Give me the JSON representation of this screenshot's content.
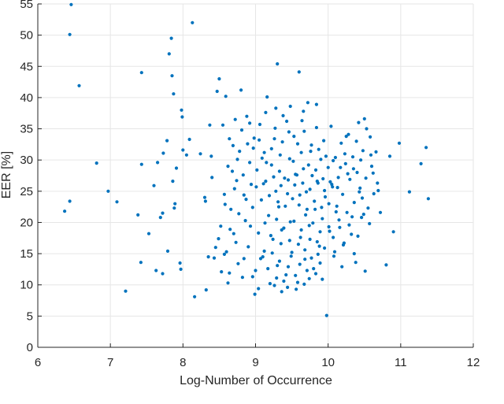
{
  "chart_data": {
    "type": "scatter",
    "title": "",
    "xlabel": "Log-Number of Occurrence",
    "ylabel": "EER [%]",
    "xlim": [
      6,
      12
    ],
    "ylim": [
      0,
      55
    ],
    "xticks": [
      6,
      7,
      8,
      9,
      10,
      11,
      12
    ],
    "yticks": [
      0,
      5,
      10,
      15,
      20,
      25,
      30,
      35,
      40,
      45,
      50,
      55
    ],
    "xtick_labels": [
      "6",
      "7",
      "8",
      "9",
      "10",
      "11",
      "12"
    ],
    "ytick_labels": [
      "0",
      "5",
      "10",
      "15",
      "20",
      "25",
      "30",
      "35",
      "40",
      "45",
      "50",
      "55"
    ],
    "grid": true,
    "marker_color": "#0072BD",
    "grid_color": "#e6e6e6",
    "axis_color": "#262626",
    "series": [
      {
        "points": [
          [
            6.46,
            54.9
          ],
          [
            6.44,
            50.1
          ],
          [
            6.57,
            41.9
          ],
          [
            6.37,
            21.8
          ],
          [
            6.44,
            23.4
          ],
          [
            6.81,
            29.5
          ],
          [
            6.97,
            25.0
          ],
          [
            7.09,
            23.3
          ],
          [
            7.21,
            9.0
          ],
          [
            7.38,
            21.2
          ],
          [
            7.42,
            13.6
          ],
          [
            7.43,
            29.3
          ],
          [
            7.43,
            44.0
          ],
          [
            7.53,
            18.2
          ],
          [
            7.6,
            25.9
          ],
          [
            7.63,
            12.3
          ],
          [
            7.65,
            29.6
          ],
          [
            7.69,
            20.8
          ],
          [
            7.72,
            21.5
          ],
          [
            7.72,
            11.8
          ],
          [
            7.73,
            31.1
          ],
          [
            7.78,
            33.1
          ],
          [
            7.79,
            15.4
          ],
          [
            7.81,
            47.0
          ],
          [
            7.84,
            49.5
          ],
          [
            7.85,
            43.5
          ],
          [
            7.86,
            26.6
          ],
          [
            7.87,
            40.6
          ],
          [
            7.88,
            22.3
          ],
          [
            7.89,
            23.0
          ],
          [
            7.91,
            28.7
          ],
          [
            7.96,
            13.5
          ],
          [
            7.97,
            12.5
          ],
          [
            7.98,
            38.0
          ],
          [
            7.99,
            36.9
          ],
          [
            8.0,
            31.6
          ],
          [
            8.05,
            30.8
          ],
          [
            8.09,
            33.3
          ],
          [
            8.13,
            52.0
          ],
          [
            8.16,
            8.1
          ],
          [
            8.24,
            31.0
          ],
          [
            8.3,
            24.0
          ],
          [
            8.31,
            23.4
          ],
          [
            8.32,
            9.2
          ],
          [
            8.35,
            14.5
          ],
          [
            8.37,
            35.6
          ],
          [
            8.39,
            30.6
          ],
          [
            8.4,
            27.2
          ],
          [
            8.43,
            14.3
          ],
          [
            8.45,
            16.0
          ],
          [
            8.47,
            41.0
          ],
          [
            8.5,
            43.0
          ],
          [
            8.52,
            19.4
          ],
          [
            8.53,
            12.1
          ],
          [
            8.55,
            35.6
          ],
          [
            8.57,
            24.5
          ],
          [
            8.59,
            40.2
          ],
          [
            8.6,
            15.3
          ],
          [
            8.62,
            10.3
          ],
          [
            8.64,
            33.4
          ],
          [
            8.66,
            22.1
          ],
          [
            8.68,
            28.2
          ],
          [
            8.7,
            18.2
          ],
          [
            8.72,
            36.5
          ],
          [
            8.74,
            26.7
          ],
          [
            8.76,
            13.4
          ],
          [
            8.78,
            31.4
          ],
          [
            8.8,
            41.2
          ],
          [
            8.82,
            11.2
          ],
          [
            8.84,
            24.4
          ],
          [
            8.86,
            20.3
          ],
          [
            8.88,
            37.0
          ],
          [
            8.9,
            16.1
          ],
          [
            8.92,
            29.6
          ],
          [
            8.94,
            26.1
          ],
          [
            8.96,
            22.4
          ],
          [
            8.98,
            33.5
          ],
          [
            9.0,
            12.3
          ],
          [
            9.02,
            28.4
          ],
          [
            9.04,
            18.3
          ],
          [
            9.06,
            35.7
          ],
          [
            9.08,
            23.6
          ],
          [
            9.1,
            14.5
          ],
          [
            9.12,
            31.2
          ],
          [
            9.14,
            26.6
          ],
          [
            9.16,
            40.1
          ],
          [
            9.18,
            21.1
          ],
          [
            9.2,
            10.2
          ],
          [
            9.22,
            29.2
          ],
          [
            9.24,
            17.3
          ],
          [
            9.26,
            33.4
          ],
          [
            9.28,
            25.0
          ],
          [
            9.3,
            45.4
          ],
          [
            9.3,
            13.1
          ],
          [
            9.32,
            22.5
          ],
          [
            9.34,
            30.8
          ],
          [
            9.36,
            18.8
          ],
          [
            9.38,
            37.1
          ],
          [
            9.4,
            27.1
          ],
          [
            9.42,
            11.6
          ],
          [
            9.44,
            24.6
          ],
          [
            9.46,
            34.5
          ],
          [
            9.48,
            20.1
          ],
          [
            9.5,
            15.2
          ],
          [
            9.52,
            29.8
          ],
          [
            9.54,
            26.0
          ],
          [
            9.56,
            9.3
          ],
          [
            9.58,
            32.6
          ],
          [
            9.6,
            44.1
          ],
          [
            9.6,
            22.8
          ],
          [
            9.62,
            17.6
          ],
          [
            9.64,
            36.3
          ],
          [
            9.66,
            28.6
          ],
          [
            9.68,
            14.1
          ],
          [
            9.7,
            24.9
          ],
          [
            9.72,
            39.2
          ],
          [
            9.74,
            19.5
          ],
          [
            9.76,
            31.4
          ],
          [
            9.78,
            27.5
          ],
          [
            9.8,
            12.6
          ],
          [
            9.82,
            22.1
          ],
          [
            9.84,
            35.2
          ],
          [
            9.86,
            26.3
          ],
          [
            9.88,
            16.2
          ],
          [
            9.9,
            30.1
          ],
          [
            9.92,
            20.6
          ],
          [
            9.94,
            33.1
          ],
          [
            9.96,
            24.1
          ],
          [
            9.98,
            5.1
          ],
          [
            10.0,
            28.8
          ],
          [
            10.02,
            18.6
          ],
          [
            10.04,
            35.4
          ],
          [
            10.06,
            25.7
          ],
          [
            10.08,
            14.6
          ],
          [
            10.1,
            30.4
          ],
          [
            10.12,
            22.6
          ],
          [
            10.14,
            27.2
          ],
          [
            10.16,
            19.2
          ],
          [
            10.18,
            32.7
          ],
          [
            10.2,
            24.5
          ],
          [
            10.22,
            16.7
          ],
          [
            10.24,
            29.4
          ],
          [
            10.26,
            21.6
          ],
          [
            10.28,
            34.1
          ],
          [
            10.3,
            26.9
          ],
          [
            10.32,
            18.1
          ],
          [
            10.34,
            30.5
          ],
          [
            10.36,
            23.2
          ],
          [
            10.38,
            13.6
          ],
          [
            10.4,
            28.0
          ],
          [
            10.42,
            36.0
          ],
          [
            10.44,
            25.5
          ],
          [
            10.46,
            20.8
          ],
          [
            10.48,
            31.5
          ],
          [
            10.5,
            36.6
          ],
          [
            10.52,
            27.1
          ],
          [
            10.55,
            22.3
          ],
          [
            10.58,
            33.7
          ],
          [
            10.6,
            29.0
          ],
          [
            10.63,
            24.6
          ],
          [
            10.66,
            31.3
          ],
          [
            10.68,
            26.3
          ],
          [
            10.72,
            21.6
          ],
          [
            10.8,
            13.2
          ],
          [
            10.85,
            30.6
          ],
          [
            10.9,
            18.5
          ],
          [
            10.98,
            32.7
          ],
          [
            11.12,
            24.9
          ],
          [
            11.28,
            29.4
          ],
          [
            11.35,
            32.0
          ],
          [
            11.38,
            23.8
          ],
          [
            8.92,
            35.9
          ],
          [
            9.05,
            33.2
          ],
          [
            9.15,
            29.6
          ],
          [
            9.22,
            31.8
          ],
          [
            9.27,
            35.1
          ],
          [
            9.33,
            28.2
          ],
          [
            9.37,
            32.9
          ],
          [
            9.43,
            36.2
          ],
          [
            9.47,
            30.2
          ],
          [
            9.53,
            33.8
          ],
          [
            9.57,
            27.6
          ],
          [
            9.63,
            31.2
          ],
          [
            9.67,
            34.6
          ],
          [
            9.73,
            29.2
          ],
          [
            9.77,
            32.4
          ],
          [
            9.83,
            28.4
          ],
          [
            9.87,
            31.7
          ],
          [
            9.93,
            27.0
          ],
          [
            9.97,
            30.6
          ],
          [
            10.03,
            26.5
          ],
          [
            10.07,
            29.9
          ],
          [
            10.13,
            25.6
          ],
          [
            10.17,
            28.8
          ],
          [
            10.23,
            31.0
          ],
          [
            10.27,
            27.8
          ],
          [
            9.11,
            26.2
          ],
          [
            9.19,
            24.3
          ],
          [
            9.25,
            27.3
          ],
          [
            9.31,
            23.3
          ],
          [
            9.35,
            25.9
          ],
          [
            9.41,
            22.6
          ],
          [
            9.45,
            26.8
          ],
          [
            9.51,
            23.8
          ],
          [
            9.55,
            27.7
          ],
          [
            9.61,
            24.4
          ],
          [
            9.65,
            26.3
          ],
          [
            9.71,
            22.1
          ],
          [
            9.75,
            25.3
          ],
          [
            9.81,
            23.4
          ],
          [
            9.85,
            26.6
          ],
          [
            9.91,
            22.4
          ],
          [
            9.95,
            25.1
          ],
          [
            10.01,
            23.0
          ],
          [
            10.05,
            26.1
          ],
          [
            10.11,
            21.7
          ],
          [
            9.13,
            19.9
          ],
          [
            9.21,
            17.9
          ],
          [
            9.29,
            20.5
          ],
          [
            9.35,
            16.6
          ],
          [
            9.39,
            19.1
          ],
          [
            9.47,
            17.1
          ],
          [
            9.53,
            20.2
          ],
          [
            9.59,
            16.5
          ],
          [
            9.63,
            18.8
          ],
          [
            9.69,
            21.2
          ],
          [
            9.75,
            17.3
          ],
          [
            9.79,
            19.9
          ],
          [
            9.85,
            16.9
          ],
          [
            9.89,
            18.5
          ],
          [
            9.95,
            15.9
          ],
          [
            10.01,
            19.3
          ],
          [
            10.07,
            17.6
          ],
          [
            10.15,
            20.4
          ],
          [
            10.21,
            16.4
          ],
          [
            10.29,
            19.6
          ],
          [
            9.07,
            14.2
          ],
          [
            9.17,
            12.6
          ],
          [
            9.23,
            15.1
          ],
          [
            9.29,
            11.1
          ],
          [
            9.33,
            13.8
          ],
          [
            9.39,
            10.6
          ],
          [
            9.45,
            12.9
          ],
          [
            9.49,
            14.6
          ],
          [
            9.55,
            11.5
          ],
          [
            9.61,
            13.3
          ],
          [
            9.67,
            10.1
          ],
          [
            9.71,
            12.3
          ],
          [
            9.77,
            14.3
          ],
          [
            9.83,
            11.8
          ],
          [
            9.89,
            13.5
          ],
          [
            8.96,
            11.3
          ],
          [
            8.99,
            8.5
          ],
          [
            9.04,
            9.4
          ],
          [
            9.12,
            15.4
          ],
          [
            9.26,
            9.9
          ],
          [
            9.36,
            8.9
          ],
          [
            9.44,
            9.6
          ],
          [
            9.58,
            10.4
          ],
          [
            9.68,
            15.6
          ],
          [
            9.74,
            11.0
          ],
          [
            9.86,
            14.9
          ],
          [
            9.92,
            10.9
          ],
          [
            10.09,
            15.3
          ],
          [
            10.19,
            12.9
          ],
          [
            10.36,
            15.0
          ],
          [
            10.51,
            12.2
          ],
          [
            10.33,
            20.9
          ],
          [
            10.41,
            17.8
          ],
          [
            10.47,
            23.9
          ],
          [
            10.57,
            19.8
          ],
          [
            10.62,
            27.9
          ],
          [
            10.69,
            25.1
          ],
          [
            10.39,
            33.0
          ],
          [
            10.45,
            30.0
          ],
          [
            10.53,
            35.0
          ],
          [
            10.25,
            33.8
          ],
          [
            10.35,
            28.6
          ],
          [
            10.43,
            24.9
          ],
          [
            10.49,
            21.3
          ],
          [
            10.59,
            30.8
          ],
          [
            8.58,
            22.9
          ],
          [
            8.65,
            18.9
          ],
          [
            8.71,
            25.4
          ],
          [
            8.77,
            21.4
          ],
          [
            8.83,
            27.6
          ],
          [
            8.87,
            23.7
          ],
          [
            8.93,
            19.4
          ],
          [
            8.97,
            31.9
          ],
          [
            9.01,
            25.7
          ],
          [
            9.09,
            30.3
          ],
          [
            8.62,
            29.0
          ],
          [
            8.69,
            32.3
          ],
          [
            8.75,
            30.1
          ],
          [
            8.81,
            34.8
          ],
          [
            8.89,
            32.6
          ],
          [
            9.14,
            37.6
          ],
          [
            9.28,
            38.3
          ],
          [
            9.48,
            38.6
          ],
          [
            9.66,
            37.8
          ],
          [
            9.84,
            38.9
          ],
          [
            8.84,
            14.2
          ],
          [
            8.73,
            16.8
          ],
          [
            8.64,
            11.9
          ],
          [
            8.57,
            14.9
          ],
          [
            8.49,
            17.4
          ]
        ]
      }
    ]
  }
}
